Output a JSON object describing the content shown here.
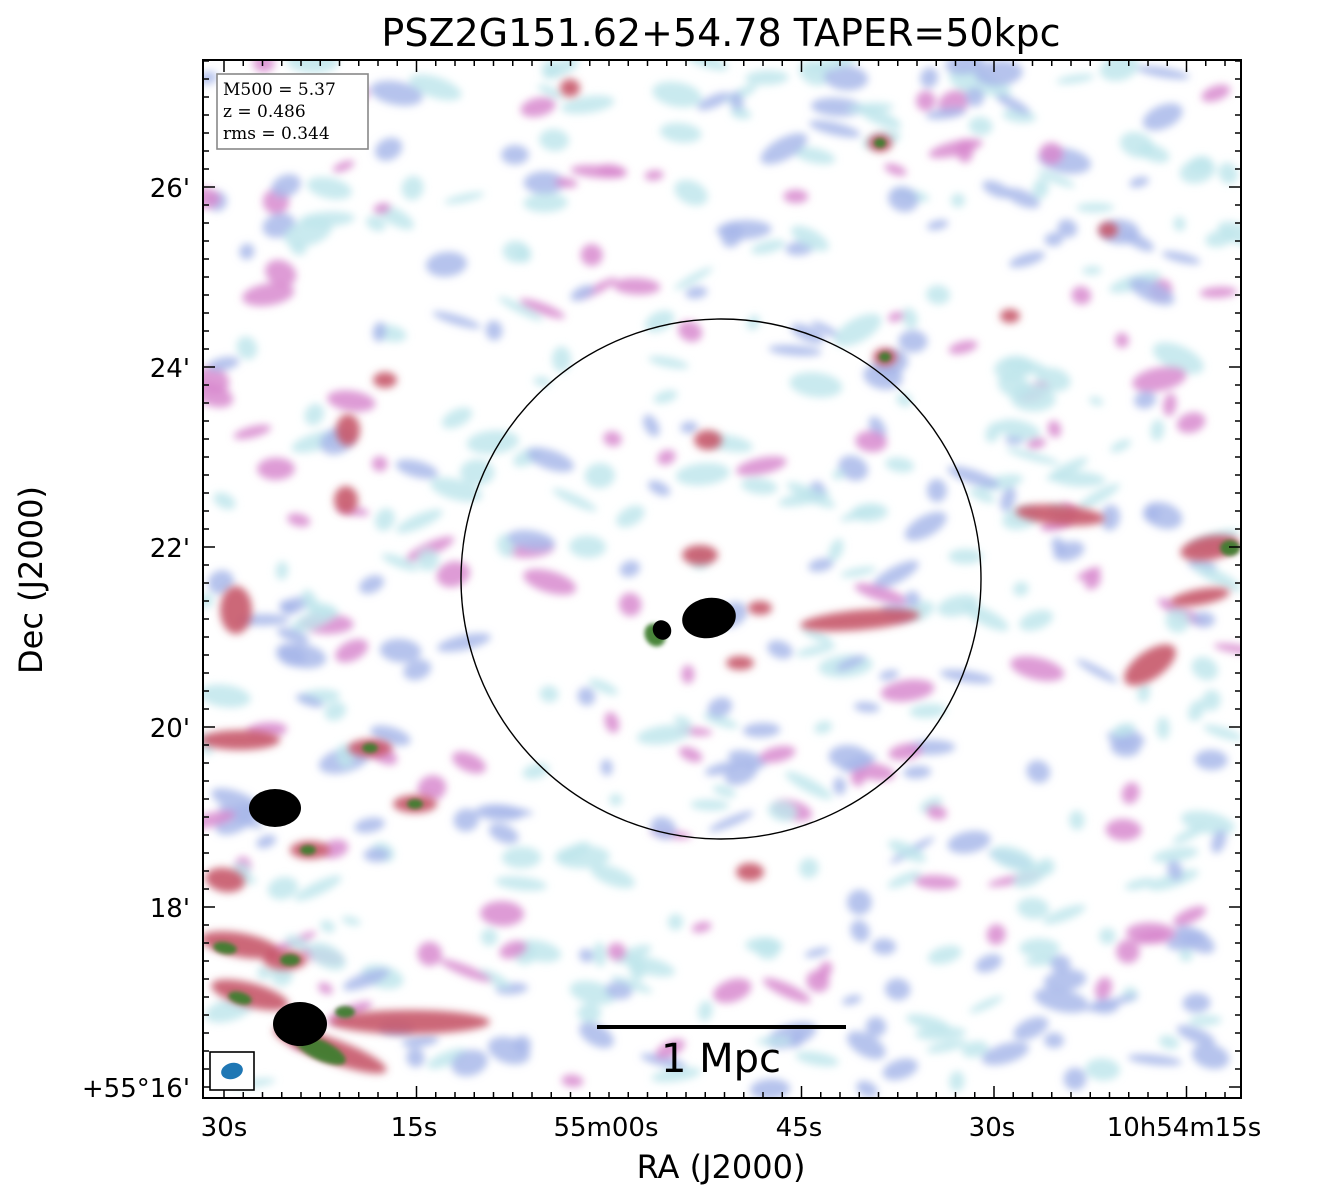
{
  "title": "PSZ2G151.62+54.78 TAPER=50kpc",
  "xaxis_label": "RA (J2000)",
  "yaxis_label": "Dec (J2000)",
  "ra_ticks": [
    "30s",
    "15s",
    "55m00s",
    "45s",
    "30s",
    "10h54m15s"
  ],
  "dec_ticks": [
    "26'",
    "24'",
    "22'",
    "20'",
    "18'",
    "+55°16'"
  ],
  "info": {
    "m500": "M500 = 5.37",
    "z": "z = 0.486",
    "rms": "rms = 0.344"
  },
  "scale_bar": {
    "label": "1 Mpc"
  },
  "colors": {
    "noise_light": "#bfe6ec",
    "noise_blue": "#a9b8ea",
    "noise_pink": "#d889cf",
    "mid_red": "#c6566a",
    "source_green": "#3e7d2e",
    "source_core": "#000000"
  }
}
